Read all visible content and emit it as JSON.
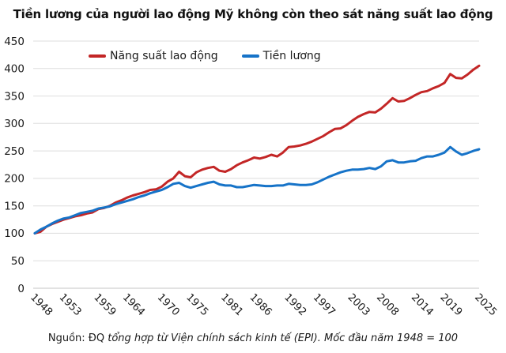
{
  "chart": {
    "title": "Tiền lương của người lao động Mỹ không còn theo sát năng suất lao động",
    "source_prefix": "Nguồn: ĐQ ",
    "source_italic": "tổng hợp từ Viện chính sách kinh tế (EPI). Mốc đầu năm 1948 = 100"
  },
  "chart_data": {
    "type": "line",
    "title": "Tiền lương của người lao động Mỹ không còn theo sát năng suất lao động",
    "xlabel": "",
    "ylabel": "",
    "xlim": [
      1948,
      2025
    ],
    "ylim": [
      0,
      450
    ],
    "grid": true,
    "legend_position": "top",
    "y_ticks": [
      0,
      50,
      100,
      150,
      200,
      250,
      300,
      350,
      400,
      450
    ],
    "x_ticks": [
      1948,
      1953,
      1959,
      1964,
      1970,
      1975,
      1981,
      1986,
      1992,
      1997,
      2003,
      2008,
      2014,
      2019,
      2025
    ],
    "x": [
      1948,
      1949,
      1950,
      1951,
      1952,
      1953,
      1954,
      1955,
      1956,
      1957,
      1958,
      1959,
      1960,
      1961,
      1962,
      1963,
      1964,
      1965,
      1966,
      1967,
      1968,
      1969,
      1970,
      1971,
      1972,
      1973,
      1974,
      1975,
      1976,
      1977,
      1978,
      1979,
      1980,
      1981,
      1982,
      1983,
      1984,
      1985,
      1986,
      1987,
      1988,
      1989,
      1990,
      1991,
      1992,
      1993,
      1994,
      1995,
      1996,
      1997,
      1998,
      1999,
      2000,
      2001,
      2002,
      2003,
      2004,
      2005,
      2006,
      2007,
      2008,
      2009,
      2010,
      2011,
      2012,
      2013,
      2014,
      2015,
      2016,
      2017,
      2018,
      2019,
      2020,
      2021,
      2022,
      2023,
      2024,
      2025
    ],
    "series": [
      {
        "name": "Năng suất lao động",
        "color": "#c32626",
        "values": [
          100,
          103,
          112,
          117,
          121,
          125,
          128,
          131,
          133,
          136,
          138,
          144,
          146,
          150,
          156,
          160,
          165,
          169,
          172,
          175,
          179,
          180,
          185,
          194,
          200,
          212,
          204,
          202,
          211,
          216,
          219,
          221,
          214,
          212,
          217,
          224,
          229,
          233,
          238,
          236,
          239,
          243,
          240,
          247,
          257,
          258,
          260,
          263,
          267,
          272,
          277,
          284,
          290,
          291,
          297,
          305,
          312,
          317,
          321,
          320,
          327,
          336,
          346,
          340,
          341,
          346,
          352,
          357,
          359,
          364,
          368,
          374,
          390,
          383,
          382,
          389,
          398,
          405
        ]
      },
      {
        "name": "Tiền lương",
        "color": "#1673c8",
        "values": [
          100,
          107,
          112,
          118,
          123,
          127,
          129,
          133,
          137,
          139,
          141,
          145,
          147,
          149,
          153,
          156,
          159,
          162,
          166,
          169,
          173,
          176,
          179,
          184,
          190,
          192,
          186,
          183,
          186,
          189,
          192,
          194,
          189,
          187,
          187,
          184,
          184,
          186,
          188,
          187,
          186,
          186,
          187,
          187,
          190,
          189,
          188,
          188,
          189,
          193,
          198,
          203,
          207,
          211,
          214,
          216,
          216,
          217,
          219,
          217,
          222,
          231,
          233,
          229,
          229,
          231,
          232,
          237,
          240,
          240,
          243,
          247,
          257,
          249,
          243,
          246,
          250,
          253
        ]
      }
    ]
  }
}
